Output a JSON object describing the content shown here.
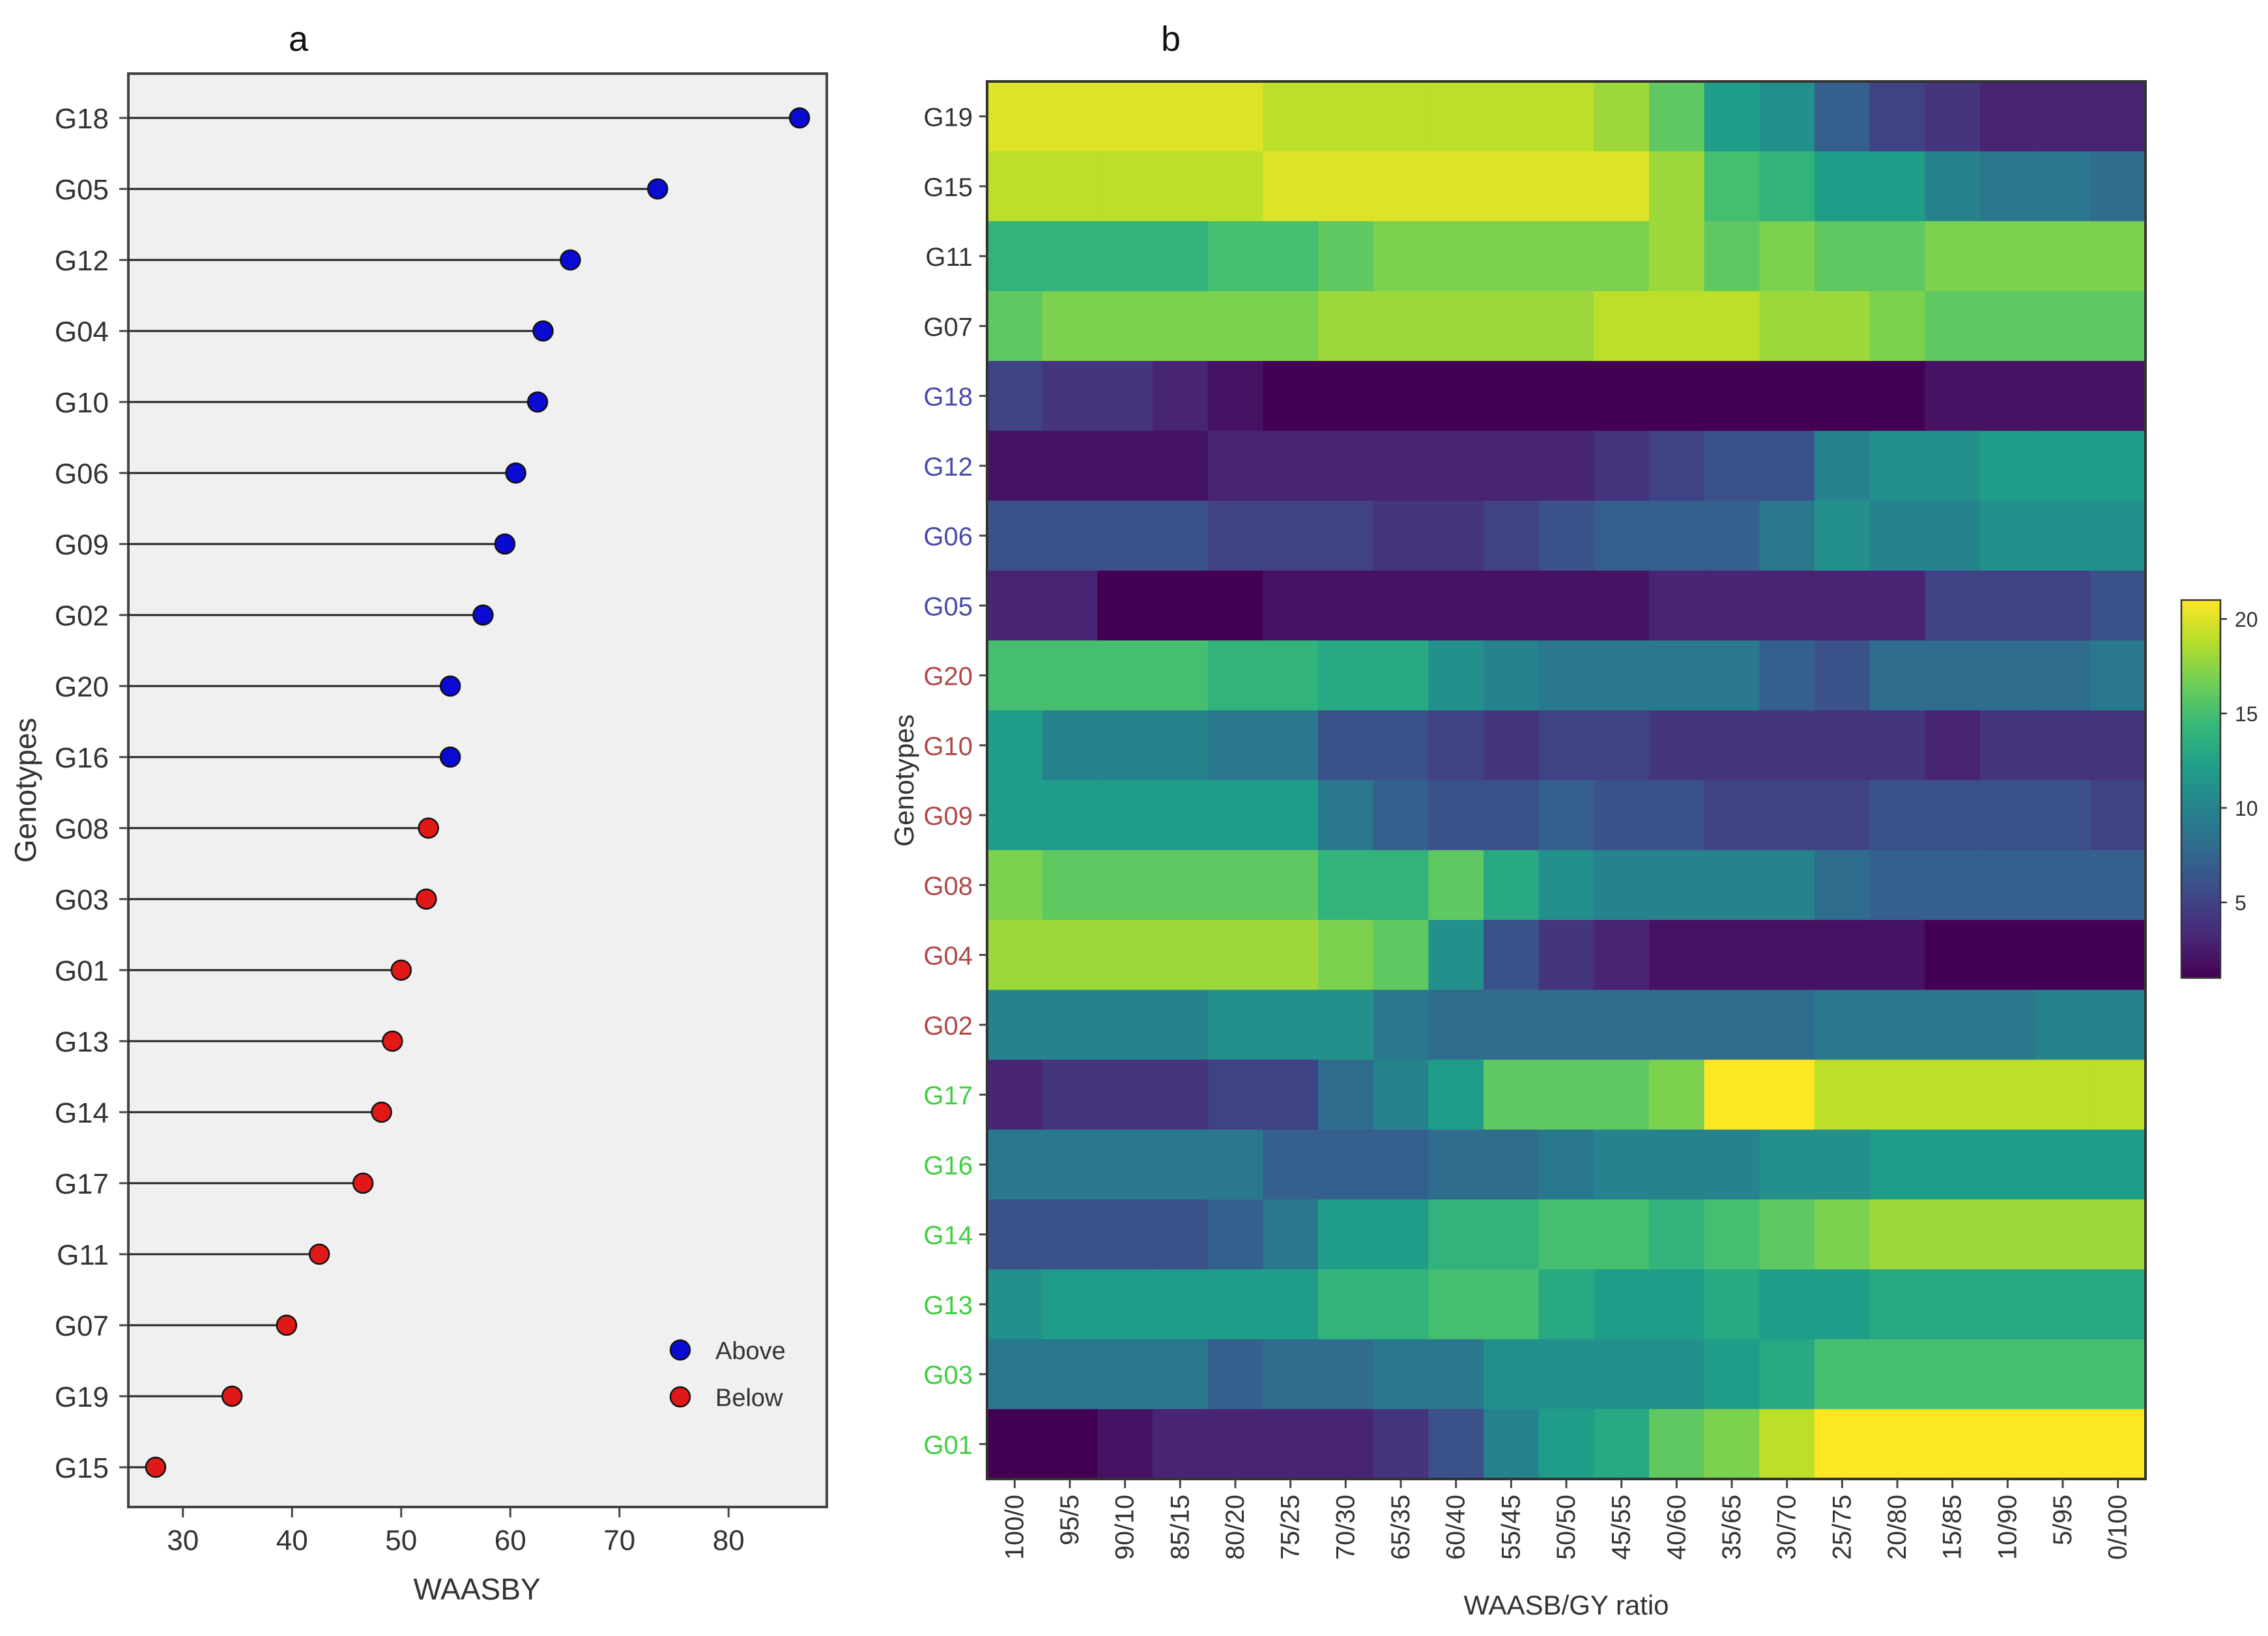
{
  "chart_data": [
    {
      "type": "scatter",
      "subtype": "lollipop",
      "panel_label": "a",
      "xlabel": "WAASBY",
      "ylabel": "Genotypes",
      "xlim": [
        25,
        89
      ],
      "xticks": [
        30,
        40,
        50,
        60,
        70,
        80
      ],
      "grid": false,
      "legend": {
        "position": "bottom-right",
        "entries": [
          {
            "name": "Above",
            "color": "#0a0ad2"
          },
          {
            "name": "Below",
            "color": "#e01818"
          }
        ]
      },
      "lollipop_start": 25,
      "categories": [
        "G18",
        "G05",
        "G12",
        "G04",
        "G10",
        "G06",
        "G09",
        "G02",
        "G20",
        "G16",
        "G08",
        "G03",
        "G01",
        "G13",
        "G14",
        "G17",
        "G11",
        "G07",
        "G19",
        "G15"
      ],
      "values": [
        86.5,
        73.5,
        65.5,
        63,
        62.5,
        60.5,
        59.5,
        57.5,
        54.5,
        54.5,
        52.5,
        52.3,
        50,
        49.2,
        48.2,
        46.5,
        42.5,
        39.5,
        34.5,
        27.5
      ],
      "groups": [
        "Above",
        "Above",
        "Above",
        "Above",
        "Above",
        "Above",
        "Above",
        "Above",
        "Above",
        "Above",
        "Below",
        "Below",
        "Below",
        "Below",
        "Below",
        "Below",
        "Below",
        "Below",
        "Below",
        "Below"
      ]
    },
    {
      "type": "heatmap",
      "panel_label": "b",
      "xlabel": "WAASB/GY ratio",
      "ylabel": "Genotypes",
      "x_categories": [
        "100/0",
        "95/5",
        "90/10",
        "85/15",
        "80/20",
        "75/25",
        "70/30",
        "65/35",
        "60/40",
        "55/45",
        "50/50",
        "45/55",
        "40/60",
        "35/65",
        "30/70",
        "25/75",
        "20/80",
        "15/85",
        "10/90",
        "5/95",
        "0/100"
      ],
      "y_categories": [
        "G19",
        "G15",
        "G11",
        "G07",
        "G18",
        "G12",
        "G06",
        "G05",
        "G20",
        "G10",
        "G09",
        "G08",
        "G04",
        "G02",
        "G17",
        "G16",
        "G14",
        "G13",
        "G03",
        "G01"
      ],
      "y_label_colors": [
        "#333333",
        "#333333",
        "#333333",
        "#333333",
        "#4a4aa8",
        "#4a4aa8",
        "#4a4aa8",
        "#4a4aa8",
        "#b04848",
        "#b04848",
        "#b04848",
        "#b04848",
        "#b04848",
        "#b04848",
        "#3fcf3f",
        "#3fcf3f",
        "#3fcf3f",
        "#3fcf3f",
        "#3fcf3f",
        "#3fcf3f"
      ],
      "colorbar": {
        "min": 1,
        "max": 21,
        "ticks": [
          5,
          10,
          15,
          20
        ],
        "colormap": "viridis"
      },
      "values": [
        [
          20,
          20,
          20,
          20,
          20,
          19,
          19,
          19,
          19,
          19,
          19,
          18,
          16,
          12,
          11,
          7,
          5,
          4,
          3,
          3,
          3
        ],
        [
          19,
          19,
          19,
          19,
          19,
          20,
          20,
          20,
          20,
          20,
          20,
          20,
          18,
          15,
          14,
          12,
          12,
          10,
          9,
          9,
          8
        ],
        [
          14,
          14,
          14,
          14,
          15,
          15,
          16,
          17,
          17,
          17,
          17,
          17,
          18,
          16,
          17,
          16,
          16,
          17,
          17,
          17,
          17
        ],
        [
          16,
          17,
          17,
          17,
          17,
          17,
          18,
          18,
          18,
          18,
          18,
          19,
          19,
          19,
          18,
          18,
          17,
          16,
          16,
          16,
          16
        ],
        [
          5,
          4,
          4,
          3,
          2,
          1,
          1,
          1,
          1,
          1,
          1,
          1,
          1,
          1,
          1,
          1,
          1,
          2,
          2,
          2,
          2
        ],
        [
          2,
          2,
          2,
          2,
          3,
          3,
          3,
          3,
          3,
          3,
          3,
          4,
          5,
          6,
          6,
          10,
          11,
          11,
          12,
          12,
          12
        ],
        [
          6,
          6,
          6,
          6,
          5,
          5,
          5,
          4,
          4,
          5,
          6,
          7,
          7,
          7,
          9,
          11,
          10,
          10,
          11,
          11,
          11
        ],
        [
          3,
          3,
          1,
          1,
          1,
          2,
          2,
          2,
          2,
          2,
          2,
          2,
          3,
          3,
          3,
          3,
          3,
          5,
          5,
          5,
          6
        ],
        [
          15,
          15,
          15,
          15,
          14,
          14,
          13,
          13,
          11,
          10,
          9,
          9,
          9,
          9,
          7,
          6,
          8,
          8,
          8,
          8,
          9
        ],
        [
          12,
          10,
          10,
          10,
          9,
          9,
          6,
          6,
          5,
          4,
          5,
          5,
          4,
          4,
          4,
          4,
          4,
          3,
          4,
          4,
          4
        ],
        [
          12,
          12,
          12,
          12,
          12,
          12,
          9,
          7,
          6,
          6,
          7,
          6,
          6,
          5,
          5,
          5,
          6,
          6,
          6,
          6,
          5
        ],
        [
          17,
          16,
          16,
          16,
          16,
          16,
          14,
          14,
          16,
          13,
          11,
          10,
          10,
          10,
          10,
          8,
          7,
          7,
          7,
          7,
          7
        ],
        [
          18,
          18,
          18,
          18,
          18,
          18,
          17,
          16,
          11,
          6,
          4,
          3,
          2,
          2,
          2,
          2,
          2,
          1,
          1,
          1,
          1
        ],
        [
          10,
          10,
          10,
          10,
          11,
          11,
          11,
          9,
          8,
          8,
          8,
          8,
          8,
          8,
          8,
          9,
          9,
          9,
          9,
          10,
          10
        ],
        [
          3,
          4,
          4,
          4,
          5,
          5,
          8,
          10,
          12,
          16,
          16,
          16,
          17,
          21,
          21,
          19,
          19,
          19,
          19,
          19,
          19
        ],
        [
          9,
          9,
          9,
          9,
          9,
          7,
          7,
          7,
          8,
          8,
          9,
          10,
          10,
          10,
          11,
          11,
          12,
          12,
          12,
          12,
          12
        ],
        [
          6,
          6,
          6,
          6,
          7,
          9,
          12,
          12,
          14,
          14,
          15,
          15,
          14,
          15,
          16,
          17,
          18,
          18,
          18,
          18,
          18
        ],
        [
          11,
          12,
          12,
          12,
          12,
          12,
          14,
          14,
          15,
          15,
          13,
          12,
          12,
          13,
          12,
          12,
          13,
          13,
          13,
          13,
          13
        ],
        [
          9,
          9,
          9,
          9,
          7,
          8,
          8,
          9,
          9,
          11,
          11,
          11,
          11,
          12,
          13,
          15,
          15,
          15,
          15,
          15,
          15
        ],
        [
          1,
          1,
          2,
          3,
          3,
          3,
          3,
          4,
          6,
          10,
          12,
          13,
          16,
          17,
          19,
          21,
          21,
          21,
          21,
          21,
          21
        ]
      ]
    }
  ]
}
